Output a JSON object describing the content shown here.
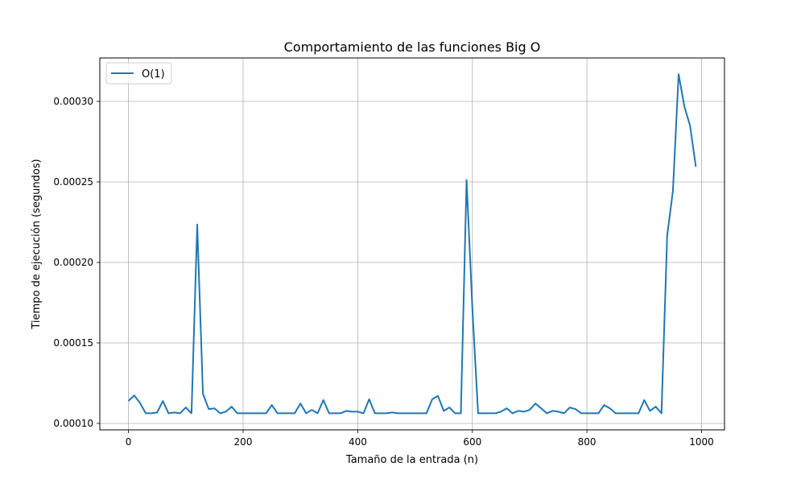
{
  "chart_data": {
    "type": "line",
    "title": "Comportamiento de las funciones Big O",
    "xlabel": "Tamaño de la entrada (n)",
    "ylabel": "Tiempo de ejecución (segundos)",
    "xlim": [
      -50,
      1040
    ],
    "ylim": [
      9.6e-05,
      0.000327
    ],
    "xticks": [
      0,
      200,
      400,
      600,
      800,
      1000
    ],
    "xtick_labels": [
      "0",
      "200",
      "400",
      "600",
      "800",
      "1000"
    ],
    "yticks": [
      0.0001,
      0.00015,
      0.0002,
      0.00025,
      0.0003
    ],
    "ytick_labels": [
      "0.00010",
      "0.00015",
      "0.00020",
      "0.00025",
      "0.00030"
    ],
    "grid": true,
    "legend_position": "upper-left",
    "series": [
      {
        "name": "O(1)",
        "color": "#1f77b4",
        "x": [
          0,
          10,
          20,
          30,
          40,
          50,
          60,
          70,
          80,
          90,
          100,
          110,
          120,
          130,
          140,
          150,
          160,
          170,
          180,
          190,
          200,
          210,
          220,
          230,
          240,
          250,
          260,
          270,
          280,
          290,
          300,
          310,
          320,
          330,
          340,
          350,
          360,
          370,
          380,
          390,
          400,
          410,
          420,
          430,
          440,
          450,
          460,
          470,
          480,
          490,
          500,
          510,
          520,
          530,
          540,
          550,
          560,
          570,
          580,
          590,
          600,
          610,
          620,
          630,
          640,
          650,
          660,
          670,
          680,
          690,
          700,
          710,
          720,
          730,
          740,
          750,
          760,
          770,
          780,
          790,
          800,
          810,
          820,
          830,
          840,
          850,
          860,
          870,
          880,
          890,
          900,
          910,
          920,
          930,
          940,
          950,
          960,
          970,
          980,
          990
        ],
        "y": [
          0.000114,
          0.0001174,
          0.0001128,
          0.0001063,
          0.0001063,
          0.0001068,
          0.0001139,
          0.0001063,
          0.0001068,
          0.0001063,
          0.0001099,
          0.0001063,
          0.0002235,
          0.0001185,
          0.0001089,
          0.0001094,
          0.0001063,
          0.0001073,
          0.0001104,
          0.0001063,
          0.0001063,
          0.0001063,
          0.0001063,
          0.0001063,
          0.0001063,
          0.0001114,
          0.0001063,
          0.0001063,
          0.0001063,
          0.0001063,
          0.0001124,
          0.0001063,
          0.0001084,
          0.0001063,
          0.0001145,
          0.0001063,
          0.0001063,
          0.0001063,
          0.0001078,
          0.0001073,
          0.0001073,
          0.0001063,
          0.000115,
          0.0001063,
          0.0001063,
          0.0001063,
          0.0001068,
          0.0001063,
          0.0001063,
          0.0001063,
          0.0001063,
          0.0001063,
          0.0001063,
          0.000115,
          0.0001171,
          0.0001078,
          0.0001099,
          0.0001063,
          0.0001063,
          0.0002512,
          0.0001714,
          0.0001063,
          0.0001063,
          0.0001063,
          0.0001063,
          0.0001073,
          0.0001094,
          0.0001063,
          0.0001078,
          0.0001073,
          0.0001084,
          0.0001124,
          0.0001094,
          0.0001063,
          0.0001078,
          0.0001073,
          0.0001063,
          0.0001099,
          0.0001089,
          0.0001063,
          0.0001063,
          0.0001063,
          0.0001063,
          0.0001114,
          0.0001094,
          0.0001063,
          0.0001063,
          0.0001063,
          0.0001063,
          0.0001063,
          0.0001145,
          0.0001078,
          0.0001104,
          0.0001063,
          0.0002167,
          0.0002443,
          0.0003169,
          0.0002967,
          0.0002848,
          0.0002594
        ]
      }
    ]
  }
}
